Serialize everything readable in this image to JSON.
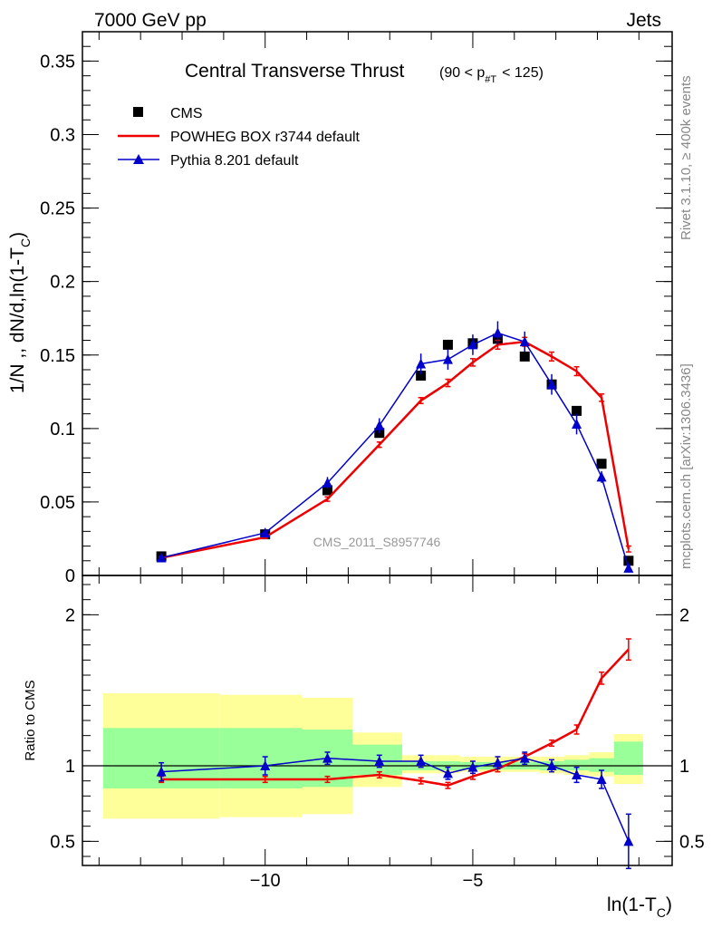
{
  "header": {
    "energy_label": "7000 GeV pp",
    "process_label": "Jets",
    "side_note_rivet": "Rivet 3.1.10, ≥ 400k events",
    "side_note_source": "mcplots.cern.ch [arXiv:1306.3436]"
  },
  "chart_data": [
    {
      "type": "line",
      "panel": "main",
      "title": "Central Transverse Thrust",
      "title_cut": "(90 < p_#T  < 125)",
      "ylabel": "1/N ,, dN/d,ln(1-T_C)",
      "xlabel": "ln(1-T_C)",
      "watermark": "CMS_2011_S8957746",
      "xlim": [
        -14.4,
        -0.2
      ],
      "ylim": [
        0,
        0.37
      ],
      "x_ticks": [
        -10,
        -5
      ],
      "y_ticks": [
        0,
        0.05,
        0.1,
        0.15,
        0.2,
        0.25,
        0.3,
        0.35
      ],
      "y_tick_labels": [
        "0",
        "0.05",
        "0.1",
        "0.15",
        "0.2",
        "0.25",
        "0.3",
        "0.35"
      ],
      "legend_position": "top-left",
      "series": [
        {
          "name": "CMS",
          "style": "markers",
          "marker": "square",
          "color": "#000000",
          "x": [
            -12.5,
            -10.0,
            -8.5,
            -7.25,
            -6.25,
            -5.6,
            -5.0,
            -4.4,
            -3.75,
            -3.1,
            -2.5,
            -1.9,
            -1.25
          ],
          "y": [
            0.013,
            0.028,
            0.058,
            0.097,
            0.136,
            0.157,
            0.158,
            0.161,
            0.149,
            0.13,
            0.112,
            0.076,
            0.01
          ]
        },
        {
          "name": "POWHEG BOX r3744 default",
          "style": "line",
          "color": "#ee0000",
          "x": [
            -12.5,
            -10.0,
            -8.5,
            -7.25,
            -6.25,
            -5.6,
            -5.0,
            -4.4,
            -3.75,
            -3.1,
            -2.5,
            -1.9,
            -1.25
          ],
          "y": [
            0.012,
            0.026,
            0.052,
            0.089,
            0.119,
            0.131,
            0.145,
            0.157,
            0.159,
            0.149,
            0.139,
            0.121,
            0.018
          ],
          "err": [
            0.0005,
            0.0008,
            0.0015,
            0.0018,
            0.002,
            0.0025,
            0.0025,
            0.003,
            0.003,
            0.003,
            0.003,
            0.0025,
            0.002
          ]
        },
        {
          "name": "Pythia 8.201 default",
          "style": "line-markers",
          "marker": "triangle",
          "color": "#0000cc",
          "x": [
            -12.5,
            -10.0,
            -8.5,
            -7.25,
            -6.25,
            -5.6,
            -5.0,
            -4.4,
            -3.75,
            -3.1,
            -2.5,
            -1.9,
            -1.25
          ],
          "y": [
            0.012,
            0.029,
            0.063,
            0.102,
            0.144,
            0.147,
            0.157,
            0.165,
            0.159,
            0.13,
            0.103,
            0.067,
            0.005
          ],
          "err": [
            0.001,
            0.002,
            0.004,
            0.005,
            0.007,
            0.007,
            0.007,
            0.008,
            0.007,
            0.007,
            0.007,
            0.004,
            0.003
          ]
        }
      ]
    },
    {
      "type": "line",
      "panel": "ratio",
      "ylabel": "Ratio to CMS",
      "xlim": [
        -14.4,
        -0.2
      ],
      "ylim": [
        0.34,
        2.26
      ],
      "y_ticks": [
        0.5,
        1,
        2
      ],
      "y_tick_labels": [
        "0.5",
        "1",
        "2"
      ],
      "reference_line": 1,
      "uncertainty_bands": {
        "x_edges": [
          -13.9,
          -11.1,
          -9.1,
          -7.9,
          -6.7,
          -5.9,
          -5.3,
          -4.7,
          -4.1,
          -3.4,
          -2.8,
          -2.2,
          -1.6,
          -0.9
        ],
        "yellow_lo": [
          0.65,
          0.66,
          0.68,
          0.86,
          0.95,
          0.95,
          0.96,
          0.96,
          0.96,
          0.95,
          0.94,
          0.93,
          0.88
        ],
        "yellow_hi": [
          1.48,
          1.47,
          1.45,
          1.22,
          1.07,
          1.07,
          1.06,
          1.06,
          1.06,
          1.06,
          1.07,
          1.09,
          1.21
        ],
        "green_lo": [
          0.85,
          0.85,
          0.86,
          0.94,
          0.97,
          0.97,
          0.975,
          0.975,
          0.975,
          0.97,
          0.97,
          0.96,
          0.94
        ],
        "green_hi": [
          1.25,
          1.25,
          1.24,
          1.14,
          1.03,
          1.03,
          1.025,
          1.025,
          1.025,
          1.03,
          1.04,
          1.05,
          1.16
        ],
        "yellow_color": "#ffff99",
        "green_color": "#99ff99"
      },
      "series": [
        {
          "name": "POWHEG BOX r3744 default",
          "color": "#ee0000",
          "x": [
            -12.5,
            -10.0,
            -8.5,
            -7.25,
            -6.25,
            -5.6,
            -5.0,
            -4.4,
            -3.75,
            -3.1,
            -2.5,
            -1.9,
            -1.25
          ],
          "y": [
            0.91,
            0.91,
            0.91,
            0.94,
            0.9,
            0.87,
            0.93,
            0.98,
            1.06,
            1.15,
            1.24,
            1.58,
            1.77
          ],
          "err": [
            0.02,
            0.02,
            0.02,
            0.02,
            0.02,
            0.02,
            0.02,
            0.02,
            0.02,
            0.02,
            0.03,
            0.04,
            0.07
          ]
        },
        {
          "name": "Pythia 8.201 default",
          "color": "#0000cc",
          "x": [
            -12.5,
            -10.0,
            -8.5,
            -7.25,
            -6.25,
            -5.6,
            -5.0,
            -4.4,
            -3.75,
            -3.1,
            -2.5,
            -1.9,
            -1.25
          ],
          "y": [
            0.96,
            1.0,
            1.05,
            1.03,
            1.03,
            0.95,
            0.99,
            1.02,
            1.05,
            1.0,
            0.94,
            0.91,
            0.5
          ],
          "err": [
            0.06,
            0.06,
            0.04,
            0.04,
            0.04,
            0.04,
            0.04,
            0.04,
            0.04,
            0.04,
            0.05,
            0.06,
            0.18
          ]
        }
      ]
    }
  ]
}
